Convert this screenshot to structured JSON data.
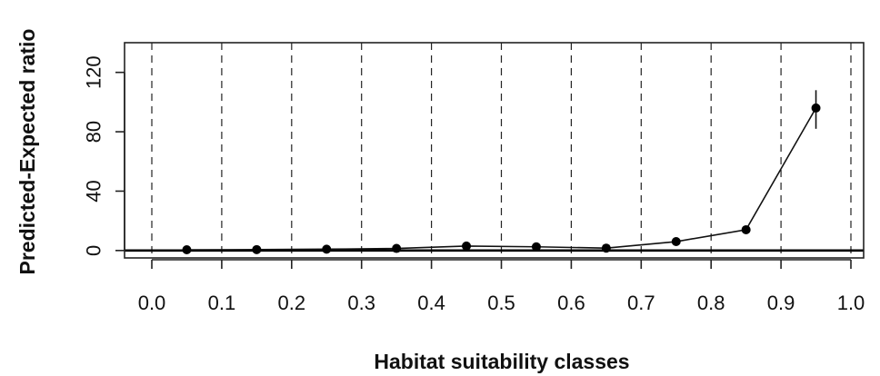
{
  "chart_data": {
    "type": "line",
    "title": "",
    "xlabel": "Habitat suitability classes",
    "ylabel": "Predicted-Expected ratio",
    "xlim": [
      0,
      1
    ],
    "ylim": [
      -5,
      140
    ],
    "x_ticks": [
      "0.0",
      "0.1",
      "0.2",
      "0.3",
      "0.4",
      "0.5",
      "0.6",
      "0.7",
      "0.8",
      "0.9",
      "1.0"
    ],
    "y_ticks": [
      "0",
      "40",
      "80",
      "120"
    ],
    "x_tick_values": [
      0,
      0.1,
      0.2,
      0.3,
      0.4,
      0.5,
      0.6,
      0.7,
      0.8,
      0.9,
      1.0
    ],
    "y_tick_values": [
      0,
      40,
      80,
      120
    ],
    "grid": "vertical dashed lines at each x tick",
    "reference_line": 0,
    "series": [
      {
        "x": [
          0.05,
          0.15,
          0.25,
          0.35,
          0.45,
          0.55,
          0.65,
          0.75,
          0.85,
          0.95
        ],
        "y": [
          0.5,
          0.6,
          0.9,
          1.4,
          3.0,
          2.5,
          1.6,
          6.0,
          14.0,
          96.0
        ],
        "error_upper": [
          null,
          null,
          null,
          null,
          null,
          null,
          null,
          null,
          null,
          108.0
        ],
        "error_lower": [
          null,
          null,
          null,
          null,
          null,
          null,
          null,
          null,
          null,
          82.0
        ]
      }
    ]
  }
}
